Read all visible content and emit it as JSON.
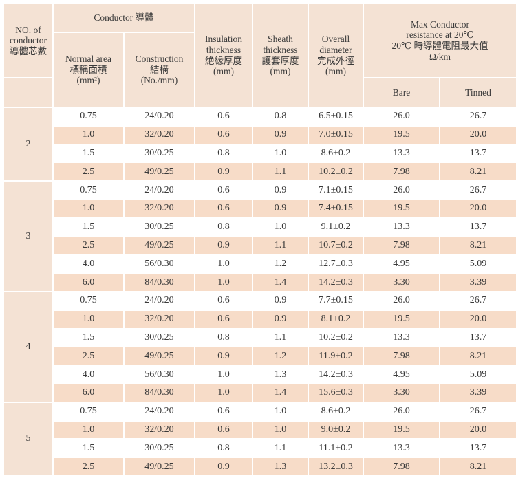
{
  "header": {
    "no_of_conductor": [
      "NO. of",
      "conductor",
      "導體芯數"
    ],
    "conductor": "Conductor 導體",
    "normal_area": [
      "Normal area",
      "標稱面積",
      "(mm²)"
    ],
    "construction": [
      "Construction",
      "結構",
      "(No./mm)"
    ],
    "insulation": [
      "Insulation",
      "thickness",
      "絶緣厚度",
      "(mm)"
    ],
    "sheath": [
      "Sheath",
      "thickness",
      "護套厚度",
      "(mm)"
    ],
    "overall": [
      "Overall",
      "diameter",
      "完成外徑",
      "(mm)"
    ],
    "resistance": [
      "Max Conductor",
      "resistance at 20℃",
      "20℃ 時導體電阻最大值",
      "Ω/km"
    ],
    "bare": "Bare",
    "tinned": "Tinned"
  },
  "groups": [
    {
      "cores": "2",
      "rows": [
        [
          "0.75",
          "24/0.20",
          "0.6",
          "0.8",
          "6.5±0.15",
          "26.0",
          "26.7"
        ],
        [
          "1.0",
          "32/0.20",
          "0.6",
          "0.9",
          "7.0±0.15",
          "19.5",
          "20.0"
        ],
        [
          "1.5",
          "30/0.25",
          "0.8",
          "1.0",
          "8.6±0.2",
          "13.3",
          "13.7"
        ],
        [
          "2.5",
          "49/0.25",
          "0.9",
          "1.1",
          "10.2±0.2",
          "7.98",
          "8.21"
        ]
      ]
    },
    {
      "cores": "3",
      "rows": [
        [
          "0.75",
          "24/0.20",
          "0.6",
          "0.9",
          "7.1±0.15",
          "26.0",
          "26.7"
        ],
        [
          "1.0",
          "32/0.20",
          "0.6",
          "0.9",
          "7.4±0.15",
          "19.5",
          "20.0"
        ],
        [
          "1.5",
          "30/0.25",
          "0.8",
          "1.0",
          "9.1±0.2",
          "13.3",
          "13.7"
        ],
        [
          "2.5",
          "49/0.25",
          "0.9",
          "1.1",
          "10.7±0.2",
          "7.98",
          "8.21"
        ],
        [
          "4.0",
          "56/0.30",
          "1.0",
          "1.2",
          "12.7±0.3",
          "4.95",
          "5.09"
        ],
        [
          "6.0",
          "84/0.30",
          "1.0",
          "1.4",
          "14.2±0.3",
          "3.30",
          "3.39"
        ]
      ]
    },
    {
      "cores": "4",
      "rows": [
        [
          "0.75",
          "24/0.20",
          "0.6",
          "0.9",
          "7.7±0.15",
          "26.0",
          "26.7"
        ],
        [
          "1.0",
          "32/0.20",
          "0.6",
          "0.9",
          "8.1±0.2",
          "19.5",
          "20.0"
        ],
        [
          "1.5",
          "30/0.25",
          "0.8",
          "1.1",
          "10.2±0.2",
          "13.3",
          "13.7"
        ],
        [
          "2.5",
          "49/0.25",
          "0.9",
          "1.2",
          "11.9±0.2",
          "7.98",
          "8.21"
        ],
        [
          "4.0",
          "56/0.30",
          "1.0",
          "1.3",
          "14.2±0.3",
          "4.95",
          "5.09"
        ],
        [
          "6.0",
          "84/0.30",
          "1.0",
          "1.4",
          "15.6±0.3",
          "3.30",
          "3.39"
        ]
      ]
    },
    {
      "cores": "5",
      "rows": [
        [
          "0.75",
          "24/0.20",
          "0.6",
          "1.0",
          "8.6±0.2",
          "26.0",
          "26.7"
        ],
        [
          "1.0",
          "32/0.20",
          "0.6",
          "1.0",
          "9.0±0.2",
          "19.5",
          "20.0"
        ],
        [
          "1.5",
          "30/0.25",
          "0.8",
          "1.1",
          "11.1±0.2",
          "13.3",
          "13.7"
        ],
        [
          "2.5",
          "49/0.25",
          "0.9",
          "1.3",
          "13.2±0.3",
          "7.98",
          "8.21"
        ]
      ]
    }
  ]
}
